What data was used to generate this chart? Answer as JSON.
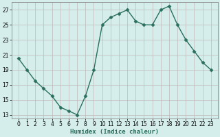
{
  "x": [
    0,
    1,
    2,
    3,
    4,
    5,
    6,
    7,
    8,
    9,
    10,
    11,
    12,
    13,
    14,
    15,
    16,
    17,
    18,
    19,
    20,
    21,
    22,
    23
  ],
  "y": [
    20.5,
    19.0,
    17.5,
    16.5,
    15.5,
    14.0,
    13.5,
    13.0,
    15.5,
    19.0,
    25.0,
    26.0,
    26.5,
    27.0,
    25.5,
    25.0,
    25.0,
    27.0,
    27.5,
    25.0,
    23.0,
    21.5,
    20.0,
    19.0
  ],
  "line_color": "#2a6e5e",
  "marker_color": "#2a6e5e",
  "bg_color": "#d5eeeb",
  "grid_color": "#c0b8b8",
  "xlabel": "Humidex (Indice chaleur)",
  "ylim": [
    12.5,
    28.0
  ],
  "yticks": [
    13,
    15,
    17,
    19,
    21,
    23,
    25,
    27
  ],
  "xticks": [
    0,
    1,
    2,
    3,
    4,
    5,
    6,
    7,
    8,
    9,
    10,
    11,
    12,
    13,
    14,
    15,
    16,
    17,
    18,
    19,
    20,
    21,
    22,
    23
  ],
  "xlabel_fontsize": 6.5,
  "tick_fontsize": 5.5,
  "line_width": 1.0,
  "marker_size": 2.5
}
